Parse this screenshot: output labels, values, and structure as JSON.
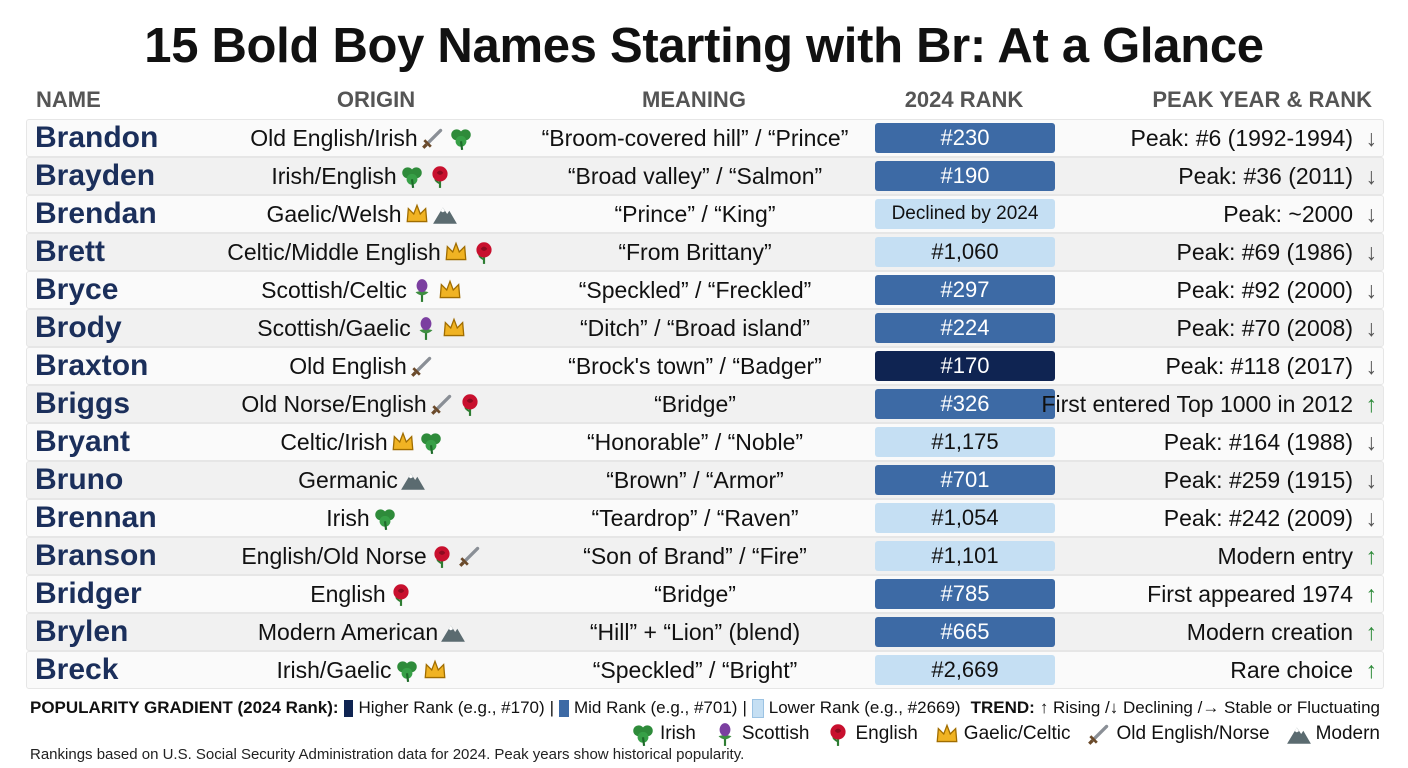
{
  "title": "15 Bold Boy Names Starting with Br: At a Glance",
  "table": {
    "headers": [
      "NAME",
      "ORIGIN",
      "MEANING",
      "2024 RANK",
      "PEAK YEAR & RANK"
    ],
    "rows": [
      {
        "name": "Brandon",
        "origin": "Old English/Irish",
        "meaning": "“Broom-covered hill” / “Prince”",
        "rank": "#230",
        "rank_color": "#3d6aa5",
        "peak": "Peak: #6 (1992-1994)",
        "trend": "↓",
        "trend_color": "#555555"
      },
      {
        "name": "Brayden",
        "origin": "Irish/English",
        "meaning": "“Broad valley” / “Salmon”",
        "rank": "#190",
        "rank_color": "#3d6aa5",
        "peak": "Peak: #36 (2011)",
        "trend": "↓",
        "trend_color": "#555555"
      },
      {
        "name": "Brendan",
        "origin": "Gaelic/Welsh",
        "meaning": "“Prince” / “King”",
        "rank": "Declined by 2024",
        "rank_color": "#c5dff3",
        "peak": "Peak: ~2000",
        "trend": "↓",
        "trend_color": "#555555"
      },
      {
        "name": "Brett",
        "origin": "Celtic/Middle English",
        "meaning": "“From Brittany”",
        "rank": "#1,060",
        "rank_color": "#c5dff3",
        "peak": "Peak: #69 (1986)",
        "trend": "↓",
        "trend_color": "#555555"
      },
      {
        "name": "Bryce",
        "origin": "Scottish/Celtic",
        "meaning": "“Speckled” / “Freckled”",
        "rank": "#297",
        "rank_color": "#3d6aa5",
        "peak": "Peak: #92 (2000)",
        "trend": "↓",
        "trend_color": "#555555"
      },
      {
        "name": "Brody",
        "origin": "Scottish/Gaelic",
        "meaning": "“Ditch” / “Broad island”",
        "rank": "#224",
        "rank_color": "#3d6aa5",
        "peak": "Peak: #70 (2008)",
        "trend": "↓",
        "trend_color": "#555555"
      },
      {
        "name": "Braxton",
        "origin": "Old English",
        "meaning": "“Brock's town” / “Badger”",
        "rank": "#170",
        "rank_color": "#0f2452",
        "peak": "Peak: #118 (2017)",
        "trend": "↓",
        "trend_color": "#555555"
      },
      {
        "name": "Briggs",
        "origin": "Old Norse/English",
        "meaning": "“Bridge”",
        "rank": "#326",
        "rank_color": "#3d6aa5",
        "peak": "First entered Top 1000 in 2012",
        "trend": "↑",
        "trend_color": "#2e8b3a"
      },
      {
        "name": "Bryant",
        "origin": "Celtic/Irish",
        "meaning": "“Honorable” / “Noble”",
        "rank": "#1,175",
        "rank_color": "#c5dff3",
        "peak": "Peak: #164 (1988)",
        "trend": "↓",
        "trend_color": "#555555"
      },
      {
        "name": "Bruno",
        "origin": "Germanic",
        "meaning": "“Brown” / “Armor”",
        "rank": "#701",
        "rank_color": "#3d6aa5",
        "peak": "Peak: #259 (1915)",
        "trend": "↓",
        "trend_color": "#555555"
      },
      {
        "name": "Brennan",
        "origin": "Irish",
        "meaning": "“Teardrop” / “Raven”",
        "rank": "#1,054",
        "rank_color": "#c5dff3",
        "peak": "Peak: #242 (2009)",
        "trend": "↓",
        "trend_color": "#555555"
      },
      {
        "name": "Branson",
        "origin": "English/Old Norse",
        "meaning": "“Son of Brand” / “Fire”",
        "rank": "#1,101",
        "rank_color": "#c5dff3",
        "peak": "Modern entry",
        "trend": "↑",
        "trend_color": "#2e8b3a"
      },
      {
        "name": "Bridger",
        "origin": "English",
        "meaning": "“Bridge”",
        "rank": "#785",
        "rank_color": "#3d6aa5",
        "peak": "First appeared 1974",
        "trend": "↑",
        "trend_color": "#2e8b3a"
      },
      {
        "name": "Brylen",
        "origin": "Modern American",
        "meaning": "“Hill” + “Lion” (blend)",
        "rank": "#665",
        "rank_color": "#3d6aa5",
        "peak": "Modern creation",
        "trend": "↑",
        "trend_color": "#2e8b3a"
      },
      {
        "name": "Breck",
        "origin": "Irish/Gaelic",
        "meaning": "“Speckled” / “Bright”",
        "rank": "#2,669",
        "rank_color": "#c5dff3",
        "peak": "Rare choice",
        "trend": "↑",
        "trend_color": "#2e8b3a"
      }
    ]
  },
  "legend": {
    "gradient_title": "POPULARITY GRADIENT (2024 Rank):",
    "gradient": [
      {
        "color": "#0f2452",
        "label": "Higher Rank (e.g., #170)"
      },
      {
        "color": "#3d6aa5",
        "label": "Mid Rank (e.g., #701)"
      },
      {
        "color": "#c5dff3",
        "label": "Lower Rank (e.g., #2669)"
      }
    ],
    "separator": "|",
    "trend_title": "TREND:",
    "trend": "↑ Rising /↓ Declining /→ Stable or Fluctuating",
    "origins": [
      "Irish",
      "Scottish",
      "English",
      "Gaelic/Celtic",
      "Old English/Norse",
      "Modern"
    ]
  },
  "footnote": "Rankings based on U.S. Social Security Administration data for 2024. Peak years show historical popularity."
}
